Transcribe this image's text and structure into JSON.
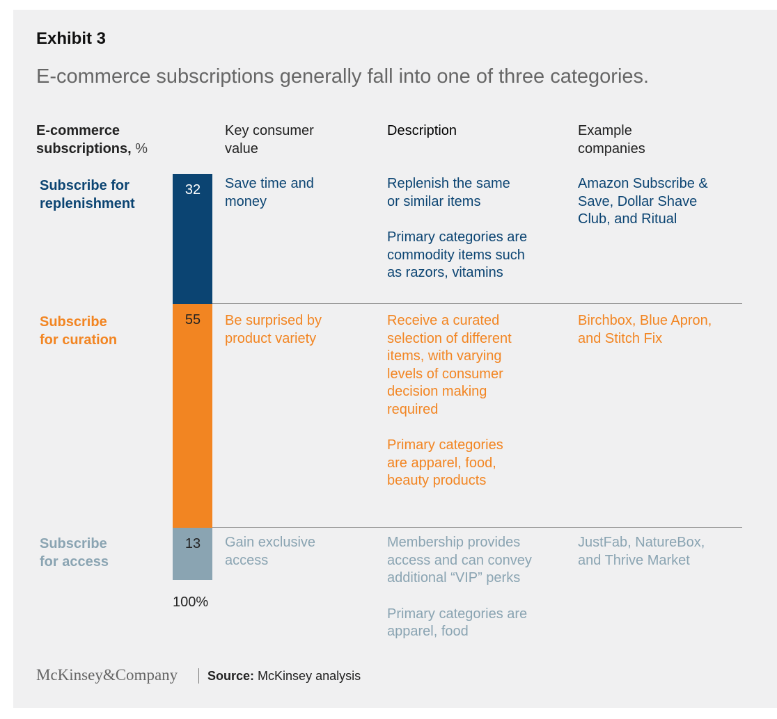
{
  "header": {
    "exhibit": "Exhibit 3",
    "title": "E-commerce subscriptions generally fall into one of three categories."
  },
  "columns": {
    "subscriptions": [
      "E-commerce",
      "subscriptions, %"
    ],
    "key_value": [
      "Key consumer",
      "value"
    ],
    "description": "Description",
    "examples": [
      "Example",
      "companies"
    ]
  },
  "rows": [
    {
      "label": [
        "Subscribe for",
        "replenishment"
      ],
      "key_value": [
        "Save time and",
        "money"
      ],
      "description_1": [
        "Replenish the same",
        "or similar items"
      ],
      "description_2": [
        "Primary categories are",
        "commodity items such",
        "as razors, vitamins"
      ],
      "examples": [
        "Amazon Subscribe &",
        "Save, Dollar Shave",
        "Club, and Ritual"
      ]
    },
    {
      "label": [
        "Subscribe",
        "for curation"
      ],
      "key_value": [
        "Be surprised by",
        "product variety"
      ],
      "description_1": [
        "Receive a curated",
        "selection of different",
        "items, with varying",
        "levels of consumer",
        "decision making",
        "required"
      ],
      "description_2": [
        "Primary categories",
        "are apparel, food,",
        "beauty products"
      ],
      "examples": [
        "Birchbox, Blue Apron,",
        "and Stitch Fix"
      ]
    },
    {
      "label": [
        "Subscribe",
        "for access"
      ],
      "key_value": [
        "Gain exclusive",
        "access"
      ],
      "description_1": [
        "Membership provides",
        "access and can convey",
        "additional “VIP” perks"
      ],
      "description_2": [
        "Primary categories are",
        "apparel, food"
      ],
      "examples": [
        "JustFab, NatureBox,",
        "and Thrive Market"
      ]
    }
  ],
  "chart_data": {
    "type": "bar",
    "orientation": "vertical-stacked-100",
    "title": "E-commerce subscriptions, %",
    "categories": [
      "Subscribe for replenishment",
      "Subscribe for curation",
      "Subscribe for access"
    ],
    "values": [
      32,
      55,
      13
    ],
    "value_labels": [
      "32",
      "55",
      "13"
    ],
    "colors": [
      "#0b4472",
      "#f28522",
      "#8aa4b2"
    ],
    "total_label": "100%"
  },
  "colors": {
    "replenishment_text": "#0b4472",
    "curation_text": "#f28522",
    "access_text": "#8aa4b2",
    "panel_bg": "#f0f0f1"
  },
  "footer": {
    "logo": "McKinsey&Company",
    "source_label": "Source:",
    "source_text": "McKinsey analysis"
  }
}
